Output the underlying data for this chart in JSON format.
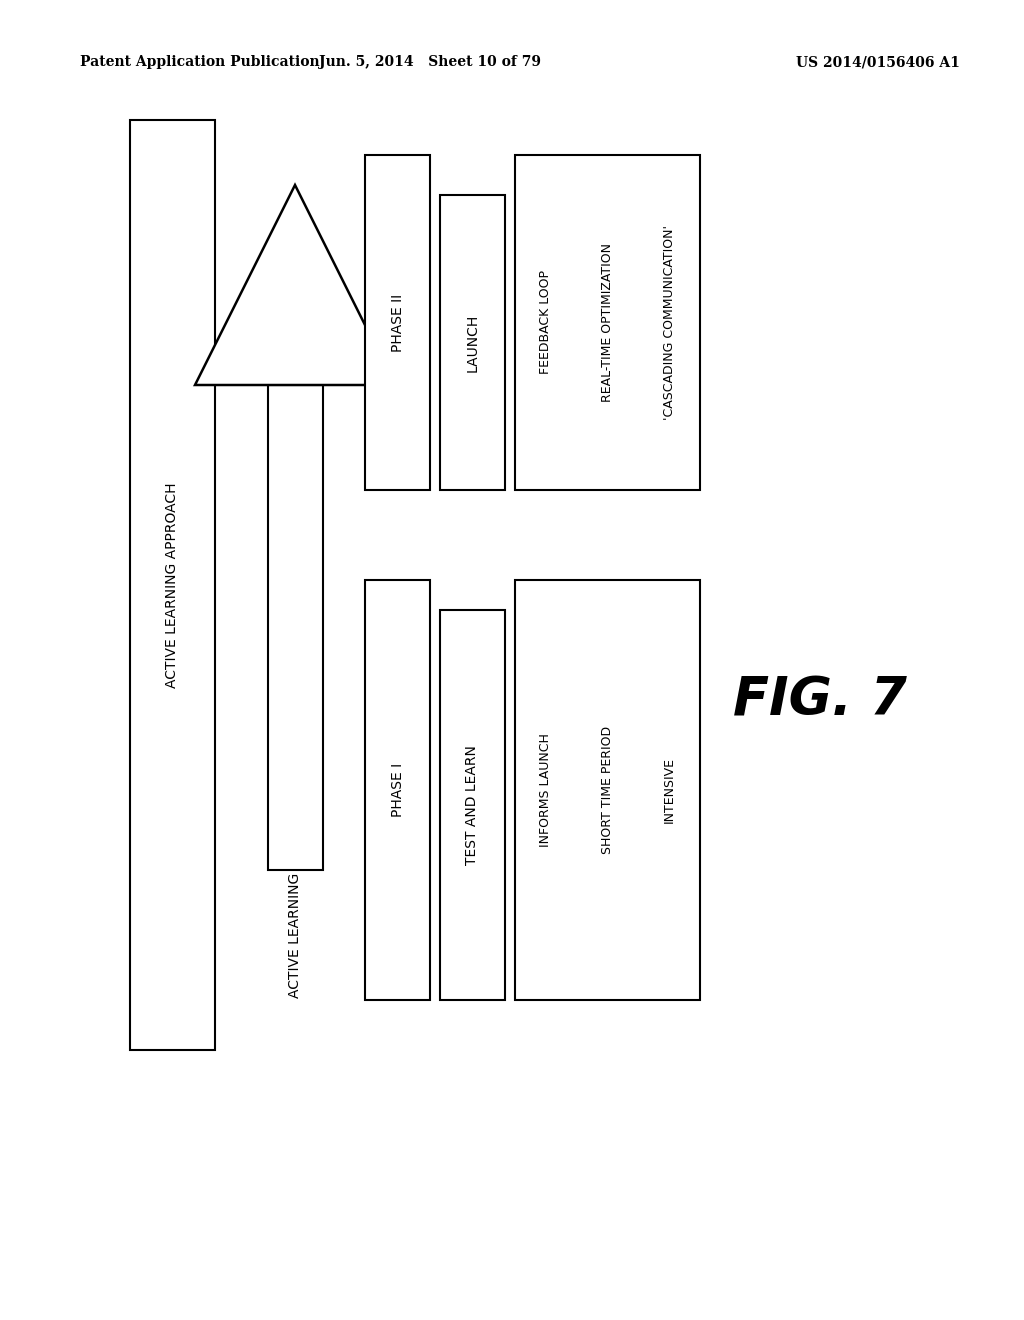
{
  "bg_color": "#ffffff",
  "header_left": "Patent Application Publication",
  "header_center": "Jun. 5, 2014   Sheet 10 of 79",
  "header_right": "US 2014/0156406 A1",
  "fig_label": "FIG. 7",
  "outer_label": "ACTIVE LEARNING APPROACH",
  "arrow_label": "ACTIVE LEARNING",
  "phase1_label": "PHASE I",
  "phase1_sub_label": "TEST AND LEARN",
  "phase1_box_lines": [
    "INTENSIVE",
    "SHORT TIME PERIOD",
    "INFORMS LAUNCH"
  ],
  "phase2_label": "PHASE II",
  "phase2_sub_label": "LAUNCH",
  "phase2_box_lines": [
    "'CASCADING COMMUNICATION'",
    "REAL-TIME OPTIMIZATION",
    "FEEDBACK LOOP"
  ]
}
